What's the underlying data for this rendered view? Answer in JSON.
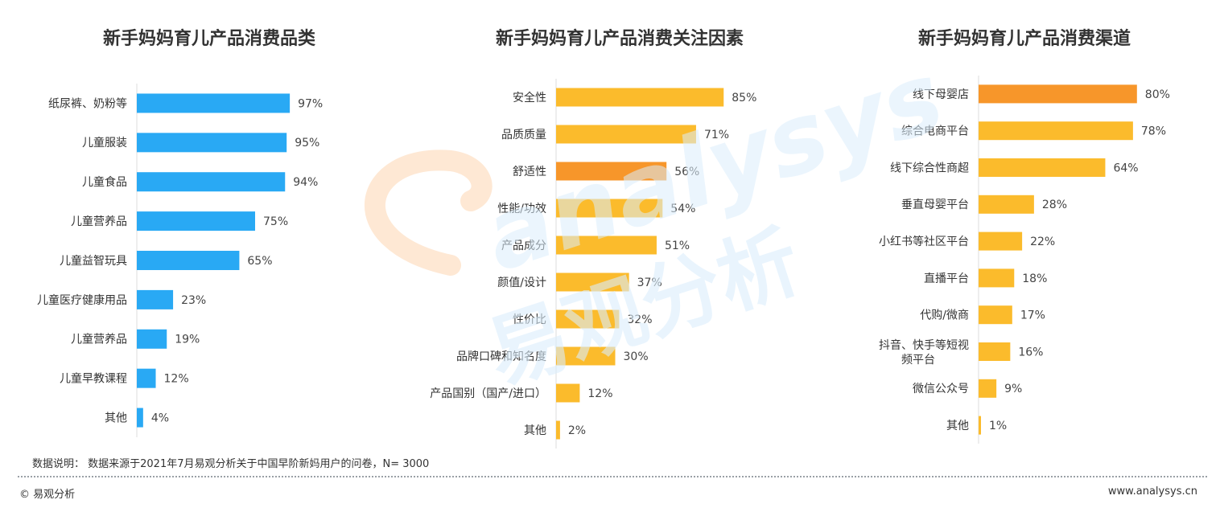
{
  "chart_data": [
    {
      "type": "bar",
      "orientation": "horizontal",
      "title": "新手妈妈育儿产品消费品类",
      "categories": [
        "纸尿裤、奶粉等",
        "儿童服装",
        "儿童食品",
        "儿童营养品",
        "儿童益智玩具",
        "儿童医疗健康用品",
        "儿童营养品",
        "儿童早教课程",
        "其他"
      ],
      "values": [
        97,
        95,
        94,
        75,
        65,
        23,
        19,
        12,
        4
      ],
      "value_labels": [
        "97%",
        "95%",
        "94%",
        "75%",
        "65%",
        "23%",
        "19%",
        "12%",
        "4%"
      ],
      "xlim": [
        0,
        100
      ],
      "color": "#29a9f4",
      "highlight_index": null,
      "highlight_color": null
    },
    {
      "type": "bar",
      "orientation": "horizontal",
      "title": "新手妈妈育儿产品消费关注因素",
      "categories": [
        "安全性",
        "品质质量",
        "舒适性",
        "性能/功效",
        "产品成分",
        "颜值/设计",
        "性价比",
        "品牌口碑和知名度",
        "产品国别（国产/进口）",
        "其他"
      ],
      "values": [
        85,
        71,
        56,
        54,
        51,
        37,
        32,
        30,
        12,
        2
      ],
      "value_labels": [
        "85%",
        "71%",
        "56%",
        "54%",
        "51%",
        "37%",
        "32%",
        "30%",
        "12%",
        "2%"
      ],
      "xlim": [
        0,
        100
      ],
      "color": "#fbbb2c",
      "highlight_index": 2,
      "highlight_color": "#f7962a"
    },
    {
      "type": "bar",
      "orientation": "horizontal",
      "title": "新手妈妈育儿产品消费渠道",
      "categories": [
        "线下母婴店",
        "综合电商平台",
        "线下综合性商超",
        "垂直母婴平台",
        "小红书等社区平台",
        "直播平台",
        "代购/微商",
        "抖音、快手等短视\n频平台",
        "微信公众号",
        "其他"
      ],
      "values": [
        80,
        78,
        64,
        28,
        22,
        18,
        17,
        16,
        9,
        1
      ],
      "value_labels": [
        "80%",
        "78%",
        "64%",
        "28%",
        "22%",
        "18%",
        "17%",
        "16%",
        "9%",
        "1%"
      ],
      "xlim": [
        0,
        100
      ],
      "color": "#fbbb2c",
      "highlight_index": 0,
      "highlight_color": "#f7962a"
    }
  ],
  "footnote": "数据说明：  数据来源于2021年7月易观分析关于中国早阶新妈用户的问卷，N= 3000",
  "footer": {
    "brand": "© 易观分析",
    "website": "www.analysys.cn"
  },
  "watermark": {
    "latin": "analysys",
    "chinese": "易观分析"
  }
}
